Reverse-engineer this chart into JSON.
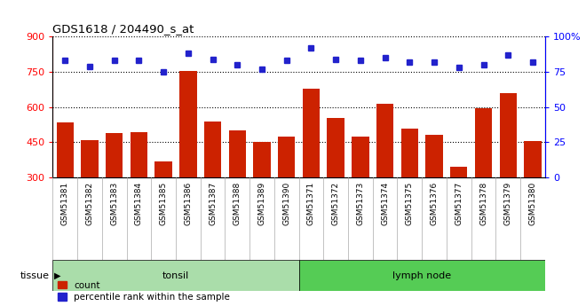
{
  "title": "GDS1618 / 204490_s_at",
  "categories": [
    "GSM51381",
    "GSM51382",
    "GSM51383",
    "GSM51384",
    "GSM51385",
    "GSM51386",
    "GSM51387",
    "GSM51388",
    "GSM51389",
    "GSM51390",
    "GSM51371",
    "GSM51372",
    "GSM51373",
    "GSM51374",
    "GSM51375",
    "GSM51376",
    "GSM51377",
    "GSM51378",
    "GSM51379",
    "GSM51380"
  ],
  "counts": [
    535,
    460,
    490,
    495,
    370,
    755,
    540,
    500,
    450,
    475,
    680,
    555,
    475,
    615,
    510,
    480,
    345,
    595,
    660,
    455
  ],
  "percentiles": [
    83,
    79,
    83,
    83,
    75,
    88,
    84,
    80,
    77,
    83,
    92,
    84,
    83,
    85,
    82,
    82,
    78,
    80,
    87,
    82
  ],
  "groups": [
    "tonsil",
    "tonsil",
    "tonsil",
    "tonsil",
    "tonsil",
    "tonsil",
    "tonsil",
    "tonsil",
    "tonsil",
    "tonsil",
    "lymph node",
    "lymph node",
    "lymph node",
    "lymph node",
    "lymph node",
    "lymph node",
    "lymph node",
    "lymph node",
    "lymph node",
    "lymph node"
  ],
  "bar_color": "#cc2200",
  "dot_color": "#2222cc",
  "tonsil_color": "#aaddaa",
  "lymph_color": "#55cc55",
  "xtick_bg_color": "#cccccc",
  "ylim_left": [
    300,
    900
  ],
  "ylim_right": [
    0,
    100
  ],
  "yticks_left": [
    300,
    450,
    600,
    750,
    900
  ],
  "yticks_right": [
    0,
    25,
    50,
    75,
    100
  ],
  "legend_count_label": "count",
  "legend_pct_label": "percentile rank within the sample",
  "tissue_label": "tissue",
  "group_tonsil": "tonsil",
  "group_lymph": "lymph node",
  "bar_bottom": 300
}
